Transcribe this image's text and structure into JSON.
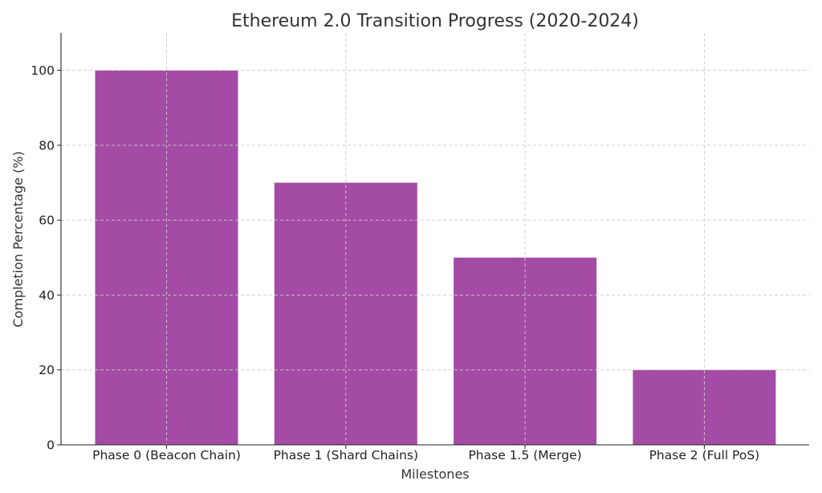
{
  "chart_data": {
    "type": "bar",
    "title": "Ethereum 2.0 Transition Progress (2020-2024)",
    "xlabel": "Milestones",
    "ylabel": "Completion Percentage (%)",
    "categories": [
      "Phase 0 (Beacon Chain)",
      "Phase 1 (Shard Chains)",
      "Phase 1.5 (Merge)",
      "Phase 2 (Full PoS)"
    ],
    "values": [
      100,
      70,
      50,
      20
    ],
    "ylim": [
      0,
      110
    ],
    "yticks": [
      0,
      20,
      40,
      60,
      80,
      100
    ],
    "grid": true,
    "bar_color": "#a34ba5"
  }
}
